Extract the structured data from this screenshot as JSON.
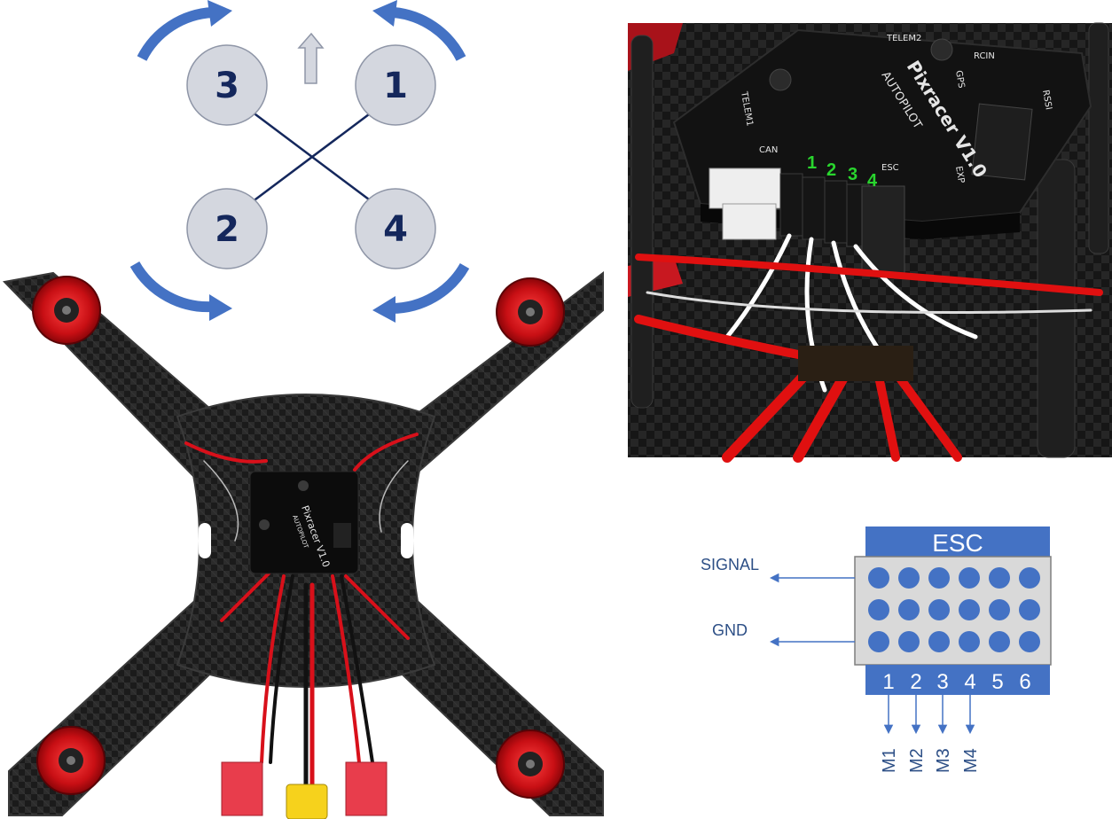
{
  "motor_layout": {
    "motors": [
      {
        "id": "3",
        "label": "3"
      },
      {
        "id": "1",
        "label": "1"
      },
      {
        "id": "2",
        "label": "2"
      },
      {
        "id": "4",
        "label": "4"
      }
    ],
    "colors": {
      "disk": "#d4d7df",
      "disk_edge": "#8f96a7",
      "label": "#14275c",
      "arrow": "#4472c4",
      "frame_line": "#14275c"
    }
  },
  "fc_photo": {
    "product_name": "Pixracer V1.0",
    "product_sub": "AUTOPILOT",
    "port_labels": [
      "TELEM2",
      "RCIN",
      "TELEM1",
      "CAN",
      "ESC",
      "GPS",
      "EXP",
      "RSSI"
    ],
    "channel_numbers": [
      "1",
      "2",
      "3",
      "4"
    ],
    "channel_color": "#29d52e"
  },
  "esc_diagram": {
    "title": "ESC",
    "signal_label": "SIGNAL",
    "gnd_label": "GND",
    "pin_numbers": [
      "1",
      "2",
      "3",
      "4",
      "5",
      "6"
    ],
    "outputs": [
      "M1",
      "M2",
      "M3",
      "M4"
    ],
    "colors": {
      "header": "#4472c4",
      "pins": "#4472c4",
      "body": "#d9d9d9",
      "text": "#2d4f86"
    }
  }
}
